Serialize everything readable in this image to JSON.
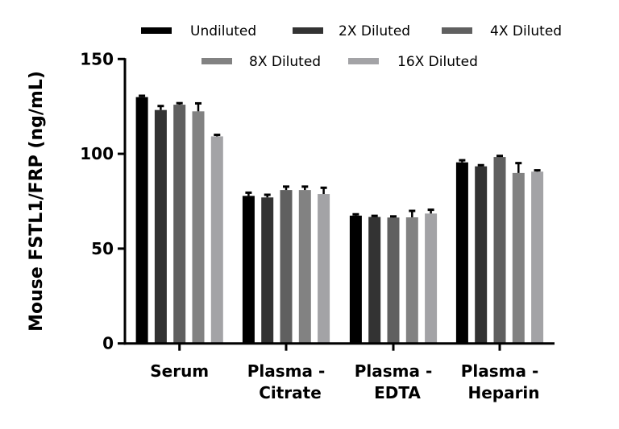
{
  "chart_data": {
    "type": "bar",
    "title": "",
    "xlabel": "",
    "ylabel": "Mouse FSTL1/FRP (ng/mL)",
    "ylim": [
      0,
      150
    ],
    "yticks": [
      "0",
      "50",
      "100",
      "150"
    ],
    "grid": false,
    "legend_position": "top",
    "categories": [
      [
        "Serum"
      ],
      [
        "Plasma -",
        "Citrate"
      ],
      [
        "Plasma -",
        "EDTA"
      ],
      [
        "Plasma -",
        "Heparin"
      ]
    ],
    "series": [
      {
        "name": "Undiluted",
        "color": "#000000",
        "values": [
          129.9,
          77.8,
          67.4,
          95.5
        ],
        "errors": [
          0.7,
          1.7,
          0.7,
          1.1
        ]
      },
      {
        "name": "2X Diluted",
        "color": "#333333",
        "values": [
          123.1,
          77.0,
          66.7,
          93.4
        ],
        "errors": [
          2.1,
          1.4,
          0.6,
          0.6
        ]
      },
      {
        "name": "4X Diluted",
        "color": "#606060",
        "values": [
          125.9,
          80.9,
          66.4,
          98.3
        ],
        "errors": [
          0.8,
          1.8,
          0.6,
          0.6
        ]
      },
      {
        "name": "8X Diluted",
        "color": "#828282",
        "values": [
          122.4,
          80.9,
          66.5,
          89.9
        ],
        "errors": [
          4.2,
          1.8,
          3.4,
          5.2
        ]
      },
      {
        "name": "16X Diluted",
        "color": "#a3a3a6",
        "values": [
          109.2,
          78.8,
          68.5,
          90.6
        ],
        "errors": [
          0.8,
          3.3,
          2.0,
          0.7
        ]
      }
    ]
  }
}
